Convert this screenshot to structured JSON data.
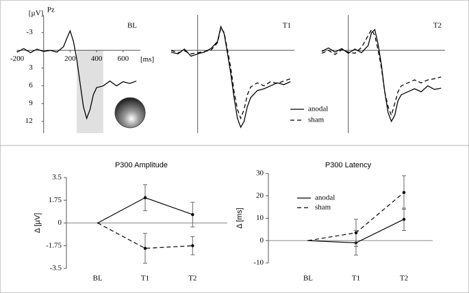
{
  "chart_data": [
    {
      "type": "line",
      "title": "BL",
      "channel": "Pz",
      "ylabel": "[µV]",
      "xlabel": "[ms]",
      "invert_y": true,
      "x": [
        -200,
        -150,
        -100,
        -50,
        0,
        50,
        100,
        150,
        175,
        200,
        225,
        250,
        275,
        300,
        325,
        350,
        375,
        400,
        450,
        500,
        550,
        600,
        650,
        700
      ],
      "xlim": [
        -200,
        730
      ],
      "ylim": [
        -5.5,
        14
      ],
      "xticks": [
        -200,
        200,
        400,
        600
      ],
      "yticks": [
        -3,
        3,
        6,
        9,
        12
      ],
      "shaded_window": [
        250,
        450
      ],
      "series": [
        {
          "color": "#000000",
          "line_style": "solid",
          "values": [
            0.3,
            -0.3,
            0.4,
            -0.2,
            0.2,
            0,
            0.3,
            -0.6,
            -2,
            -3.3,
            -1.5,
            1.5,
            5.5,
            9.5,
            11.5,
            10,
            7.5,
            6.3,
            6,
            5.2,
            6,
            5.3,
            5.6,
            5.2
          ]
        }
      ]
    },
    {
      "type": "line",
      "title": "T1",
      "invert_y": true,
      "legend": true,
      "x": [
        -200,
        -150,
        -100,
        -50,
        0,
        50,
        100,
        150,
        175,
        200,
        225,
        250,
        275,
        300,
        325,
        350,
        375,
        400,
        450,
        500,
        550,
        600,
        650,
        700
      ],
      "xlim": [
        -200,
        730
      ],
      "ylim": [
        -5.5,
        14
      ],
      "series": [
        {
          "name": "anodal",
          "color": "#000000",
          "line_style": "solid",
          "values": [
            0.3,
            0.6,
            -0.2,
            1,
            0.6,
            0.3,
            -0.3,
            -1.5,
            -4,
            -2.8,
            0.5,
            4,
            8,
            11.5,
            13,
            12,
            9.5,
            8,
            6.8,
            6.5,
            6,
            5.5,
            5.8,
            5.3
          ]
        },
        {
          "name": "sham",
          "color": "#000000",
          "line_style": "dashed",
          "values": [
            0,
            0.4,
            0.1,
            0.6,
            0.4,
            0.2,
            0,
            -1.3,
            -3.8,
            -3,
            0,
            3,
            7,
            10,
            11.5,
            10,
            7.5,
            6.2,
            5.5,
            6,
            5.3,
            5.6,
            5.2,
            4.8
          ]
        }
      ]
    },
    {
      "type": "line",
      "title": "T2",
      "invert_y": true,
      "x": [
        -200,
        -150,
        -100,
        -50,
        0,
        50,
        100,
        150,
        175,
        200,
        225,
        250,
        275,
        300,
        325,
        350,
        375,
        400,
        450,
        500,
        550,
        600,
        650,
        700
      ],
      "xlim": [
        -200,
        730
      ],
      "ylim": [
        -5.5,
        14
      ],
      "series": [
        {
          "color": "#000000",
          "line_style": "solid",
          "values": [
            0.2,
            -0.4,
            0.3,
            -0.3,
            0.5,
            -0.2,
            0.4,
            -0.8,
            -3,
            -3.5,
            -1,
            2.5,
            7,
            10.5,
            12,
            11,
            8.5,
            7.5,
            7,
            6.5,
            7,
            6,
            6.6,
            6.4
          ]
        },
        {
          "color": "#000000",
          "line_style": "dashed",
          "values": [
            0.5,
            0,
            0.7,
            -0.1,
            0.3,
            0.5,
            -0.5,
            -2.5,
            -3.5,
            -2.5,
            0,
            3,
            7,
            9.5,
            11,
            9,
            7,
            6,
            5.5,
            5,
            5.5,
            5,
            4.8,
            4.5
          ]
        }
      ]
    },
    {
      "type": "errorline",
      "title": "P300 Amplitude",
      "ylabel": "Δ [µV]",
      "categories": [
        "BL",
        "T1",
        "T2"
      ],
      "ylim": [
        -3.5,
        3.5
      ],
      "yticks": [
        3.5,
        1.75,
        0,
        -1.75,
        -3.5
      ],
      "series": [
        {
          "color": "#000000",
          "line_style": "solid",
          "values": [
            0,
            1.95,
            0.65
          ],
          "errors": [
            null,
            1.0,
            0.95
          ]
        },
        {
          "color": "#000000",
          "line_style": "dashed",
          "values": [
            0,
            -1.95,
            -1.75
          ],
          "errors": [
            null,
            1.15,
            0.7
          ]
        }
      ]
    },
    {
      "type": "errorline",
      "title": "P300 Latency",
      "ylabel": "Δ [ms]",
      "legend": true,
      "categories": [
        "BL",
        "T1",
        "T2"
      ],
      "ylim": [
        -10,
        30
      ],
      "yticks": [
        30,
        20,
        10,
        0,
        -10
      ],
      "series": [
        {
          "name": "anodal",
          "color": "#000000",
          "line_style": "solid",
          "values": [
            0,
            -1,
            9.5
          ],
          "errors": [
            null,
            5.5,
            5
          ]
        },
        {
          "name": "sham",
          "color": "#000000",
          "line_style": "dashed",
          "values": [
            0,
            3.5,
            21.5
          ],
          "errors": [
            null,
            6,
            7.5
          ]
        }
      ]
    }
  ]
}
